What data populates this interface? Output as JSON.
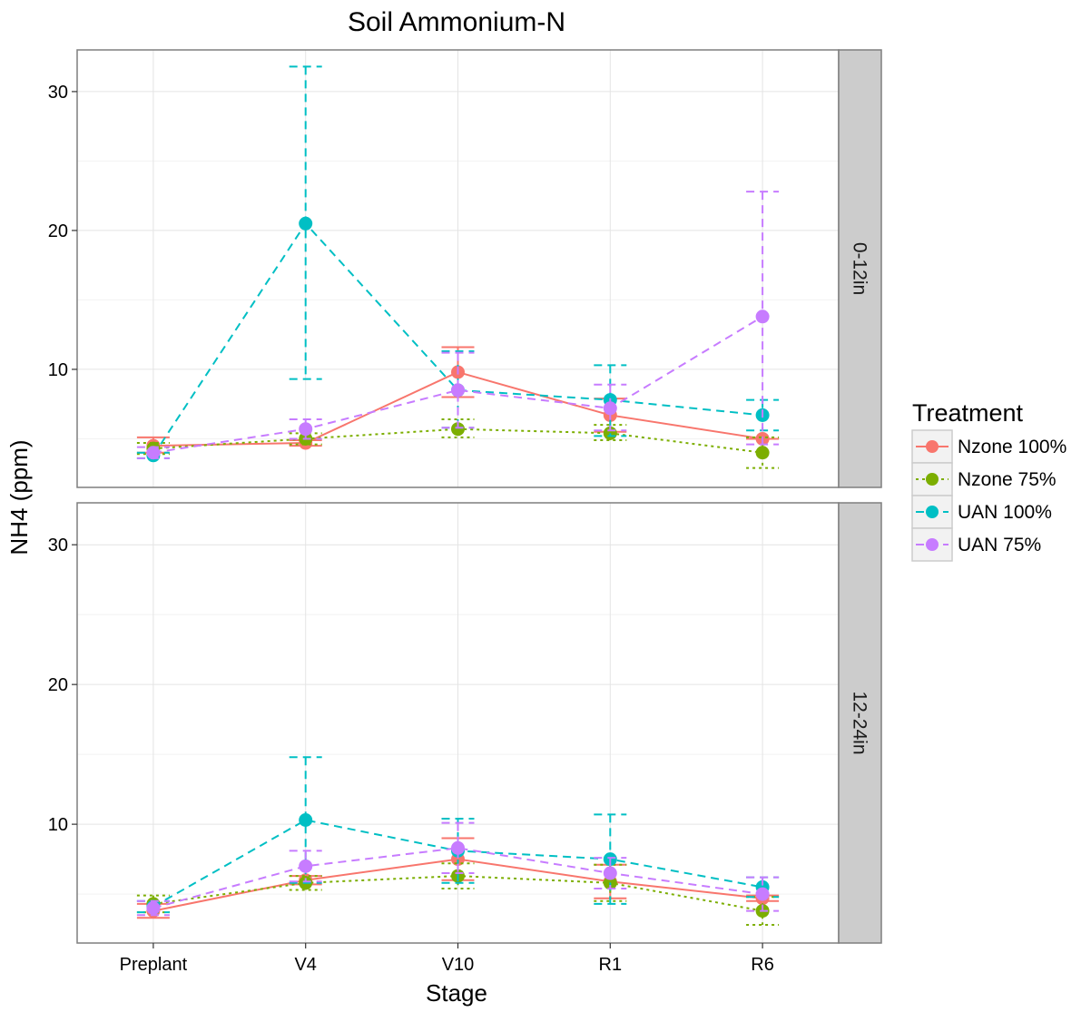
{
  "chart_data": {
    "type": "line",
    "title": "Soil Ammonium-N",
    "xlabel": "Stage",
    "ylabel": "NH4 (ppm)",
    "categories": [
      "Preplant",
      "V4",
      "V10",
      "R1",
      "R6"
    ],
    "ylim": [
      1.5,
      33
    ],
    "yticks": [
      10,
      20,
      30
    ],
    "grid": true,
    "legend": {
      "title": "Treatment",
      "placement": "right"
    },
    "facets": [
      {
        "label": "0-12in",
        "series": [
          {
            "name": "Nzone 100%",
            "color": "#F8766D",
            "dash": "solid",
            "values": [
              4.5,
              4.7,
              9.8,
              6.7,
              5.0
            ],
            "err_low": [
              4.0,
              4.5,
              8.0,
              5.5,
              5.0
            ],
            "err_high": [
              5.1,
              4.9,
              11.6,
              7.9,
              5.0
            ]
          },
          {
            "name": "Nzone 75%",
            "color": "#7CAE00",
            "dash": "dotted",
            "values": [
              4.3,
              5.0,
              5.7,
              5.4,
              4.0
            ],
            "err_low": [
              3.9,
              4.6,
              5.1,
              4.9,
              2.9
            ],
            "err_high": [
              4.7,
              5.4,
              6.4,
              6.0,
              5.1
            ]
          },
          {
            "name": "UAN 100%",
            "color": "#00BFC4",
            "dash": "dashed",
            "values": [
              3.8,
              20.5,
              8.5,
              7.8,
              6.7
            ],
            "err_low": [
              3.6,
              9.3,
              5.8,
              5.2,
              5.6
            ],
            "err_high": [
              4.0,
              31.8,
              11.3,
              10.3,
              7.8
            ]
          },
          {
            "name": "UAN 75%",
            "color": "#C77CFF",
            "dash": "dashed",
            "values": [
              4.0,
              5.7,
              8.5,
              7.2,
              13.8
            ],
            "err_low": [
              3.6,
              5.0,
              5.8,
              5.6,
              4.6
            ],
            "err_high": [
              4.4,
              6.4,
              11.2,
              8.9,
              22.8
            ]
          }
        ]
      },
      {
        "label": "12-24in",
        "series": [
          {
            "name": "Nzone 100%",
            "color": "#F8766D",
            "dash": "solid",
            "values": [
              3.8,
              6.0,
              7.5,
              5.9,
              4.7
            ],
            "err_low": [
              3.3,
              5.7,
              6.0,
              4.7,
              4.5
            ],
            "err_high": [
              4.3,
              6.3,
              9.0,
              7.1,
              4.9
            ]
          },
          {
            "name": "Nzone 75%",
            "color": "#7CAE00",
            "dash": "dotted",
            "values": [
              4.3,
              5.8,
              6.3,
              5.8,
              3.8
            ],
            "err_low": [
              3.7,
              5.3,
              5.4,
              4.5,
              2.8
            ],
            "err_high": [
              4.9,
              6.3,
              7.2,
              7.1,
              4.8
            ]
          },
          {
            "name": "UAN 100%",
            "color": "#00BFC4",
            "dash": "dashed",
            "values": [
              4.1,
              10.3,
              8.1,
              7.5,
              5.5
            ],
            "err_low": [
              3.7,
              5.8,
              5.8,
              4.3,
              4.8
            ],
            "err_high": [
              4.5,
              14.8,
              10.4,
              10.7,
              6.2
            ]
          },
          {
            "name": "UAN 75%",
            "color": "#C77CFF",
            "dash": "dashed",
            "values": [
              4.0,
              7.0,
              8.3,
              6.5,
              5.0
            ],
            "err_low": [
              3.5,
              5.9,
              6.5,
              5.4,
              3.8
            ],
            "err_high": [
              4.5,
              8.1,
              10.1,
              7.6,
              6.2
            ]
          }
        ]
      }
    ]
  }
}
